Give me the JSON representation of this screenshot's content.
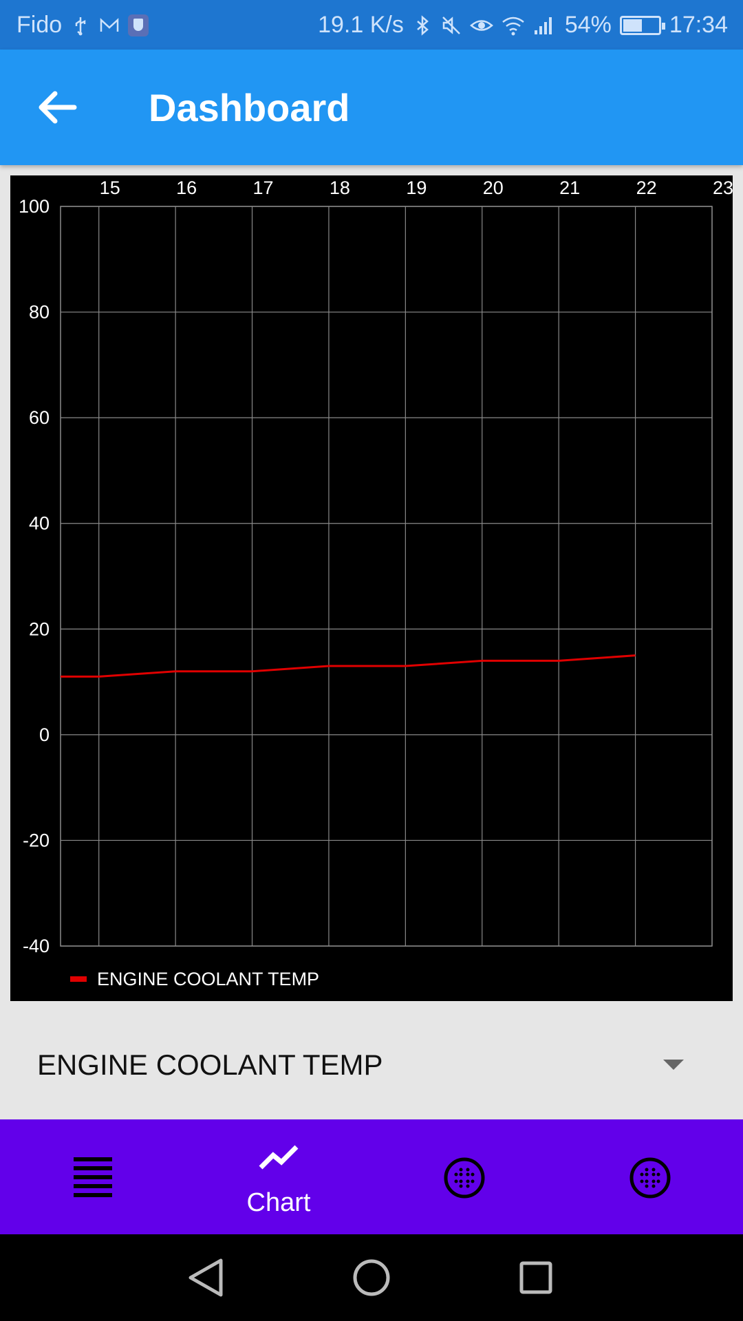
{
  "status_bar": {
    "carrier": "Fido",
    "net_speed": "19.1 K/s",
    "battery": "54%",
    "battery_level": 0.54,
    "time": "17:34"
  },
  "app_bar": {
    "title": "Dashboard",
    "back_icon": "arrow-back-icon"
  },
  "chart_data": {
    "type": "line",
    "title": "",
    "xlabel": "",
    "ylabel": "",
    "x_ticks": [
      15,
      16,
      17,
      18,
      19,
      20,
      21,
      22,
      23
    ],
    "y_ticks": [
      100,
      80,
      60,
      40,
      20,
      0,
      -20,
      -40
    ],
    "xlim": [
      14.5,
      23
    ],
    "ylim": [
      -40,
      100
    ],
    "grid": true,
    "legend": "bottom-left",
    "series": [
      {
        "name": "ENGINE COOLANT TEMP",
        "color": "#e00000",
        "x": [
          14.5,
          15,
          16,
          17,
          18,
          19,
          20,
          21,
          22
        ],
        "y": [
          11,
          11,
          12,
          12,
          13,
          13,
          14,
          14,
          15
        ]
      }
    ]
  },
  "dropdown": {
    "selected": "ENGINE COOLANT TEMP"
  },
  "bottom_nav": {
    "items": [
      {
        "icon": "list-icon",
        "label": ""
      },
      {
        "icon": "chart-icon",
        "label": "Chart"
      },
      {
        "icon": "gauge-icon",
        "label": ""
      },
      {
        "icon": "gauge-icon",
        "label": ""
      }
    ],
    "active_index": 1,
    "active_color": "#ffffff"
  },
  "colors": {
    "status_bar": "#1e76d0",
    "app_bar": "#2196f3",
    "bottom_nav": "#6200ea",
    "series": "#e00000"
  }
}
